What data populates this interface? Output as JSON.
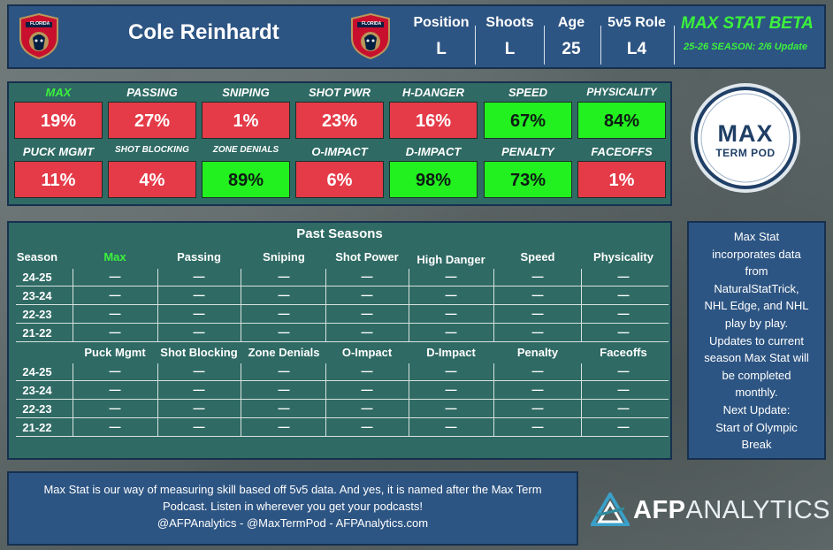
{
  "header": {
    "team": "FLORIDA",
    "player_name": "Cole Reinhardt",
    "columns": [
      {
        "label": "Position",
        "value": "L"
      },
      {
        "label": "Shoots",
        "value": "L"
      },
      {
        "label": "Age",
        "value": "25"
      },
      {
        "label": "5v5 Role",
        "value": "L4"
      }
    ],
    "beta_title": "MAX STAT BETA",
    "beta_subtitle": "25-26 SEASON: 2/6 Update"
  },
  "stats": [
    {
      "label": "MAX",
      "value": "19%",
      "status": "red",
      "highlight": true
    },
    {
      "label": "PASSING",
      "value": "27%",
      "status": "red"
    },
    {
      "label": "SNIPING",
      "value": "1%",
      "status": "red"
    },
    {
      "label": "SHOT PWR",
      "value": "23%",
      "status": "red"
    },
    {
      "label": "H-DANGER",
      "value": "16%",
      "status": "red"
    },
    {
      "label": "SPEED",
      "value": "67%",
      "status": "green"
    },
    {
      "label": "PHYSICALITY",
      "value": "84%",
      "status": "green"
    },
    {
      "label": "PUCK MGMT",
      "value": "11%",
      "status": "red"
    },
    {
      "label": "SHOT BLOCKING",
      "value": "4%",
      "status": "red"
    },
    {
      "label": "ZONE DENIALS",
      "value": "89%",
      "status": "green"
    },
    {
      "label": "O-IMPACT",
      "value": "6%",
      "status": "red"
    },
    {
      "label": "D-IMPACT",
      "value": "98%",
      "status": "green"
    },
    {
      "label": "PENALTY",
      "value": "73%",
      "status": "green"
    },
    {
      "label": "FACEOFFS",
      "value": "1%",
      "status": "red"
    }
  ],
  "pod_logo": {
    "big": "MAX",
    "small": "TERM POD"
  },
  "past_seasons": {
    "title": "Past Seasons",
    "season_header": "Season",
    "headers_top": [
      "Max",
      "Passing",
      "Sniping",
      "Shot Power",
      "High Danger",
      "Speed",
      "Physicality"
    ],
    "headers_bottom": [
      "Puck Mgmt",
      "Shot Blocking",
      "Zone Denials",
      "O-Impact",
      "D-Impact",
      "Penalty",
      "Faceoffs"
    ],
    "seasons": [
      "24-25",
      "23-24",
      "22-23",
      "21-22"
    ],
    "empty_value": "—"
  },
  "info_text": [
    "Max Stat",
    "incorporates data",
    "from",
    "NaturalStatTrick,",
    "NHL Edge, and NHL",
    "play by play.",
    "Updates to current",
    "season Max Stat will",
    "be completed",
    "monthly.",
    "Next Update:",
    "Start of Olympic",
    "Break"
  ],
  "note_text": [
    "Max Stat is our way of measuring skill based off 5v5 data. And yes, it is named after the Max Term",
    "Podcast. Listen in wherever you get your podcasts!",
    "@AFPAnalytics - @MaxTermPod - AFPAnalytics.com"
  ],
  "afp_logo": {
    "bold": "AFP",
    "thin": "ANALYTICS"
  },
  "colors": {
    "red": "#e53b48",
    "green": "#22f01f",
    "accent_green": "#3cf23c",
    "panel_blue": "#2d5583",
    "panel_teal": "#2f6a64"
  }
}
